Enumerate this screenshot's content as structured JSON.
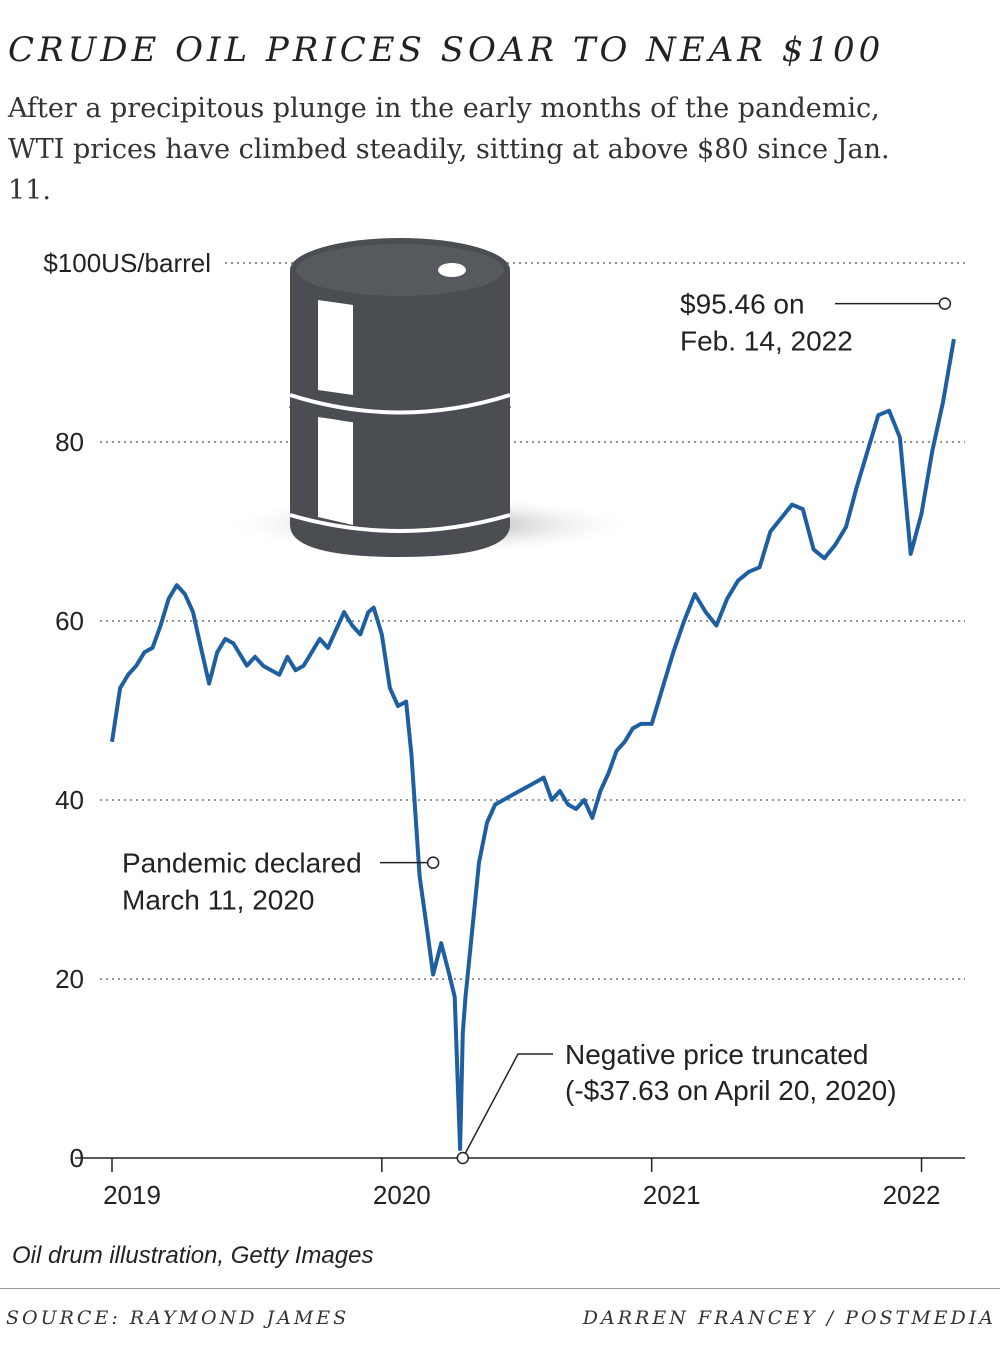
{
  "header": {
    "title": "CRUDE OIL PRICES SOAR TO NEAR $100",
    "subtitle": "After a precipitous plunge in the early months of the pandemic, WTI prices have climbed steadily, sitting at above $80 since Jan. 11."
  },
  "chart_data": {
    "type": "line",
    "x_tick_labels": [
      "2019",
      "2020",
      "2021",
      "2022"
    ],
    "x_ticks": [
      2019.0,
      2020.0,
      2021.0,
      2022.0
    ],
    "xlim": [
      2019.0,
      2022.15
    ],
    "y_tick_labels": [
      "$100US/barrel",
      "80",
      "60",
      "40",
      "20",
      "0"
    ],
    "y_ticks": [
      100,
      80,
      60,
      40,
      20,
      0
    ],
    "ylim": [
      0,
      100
    ],
    "grid": true,
    "line_color": "#1d5fa0",
    "series": [
      {
        "x": [
          2019.0,
          2019.03,
          2019.06,
          2019.09,
          2019.12,
          2019.15,
          2019.18,
          2019.21,
          2019.24,
          2019.27,
          2019.3,
          2019.33,
          2019.36,
          2019.39,
          2019.42,
          2019.45,
          2019.48,
          2019.5,
          2019.53,
          2019.56,
          2019.59,
          2019.62,
          2019.65,
          2019.68,
          2019.71,
          2019.74,
          2019.77,
          2019.8,
          2019.83,
          2019.86,
          2019.89,
          2019.92,
          2019.95,
          2019.97,
          2020.0,
          2020.03,
          2020.06,
          2020.09,
          2020.11,
          2020.14,
          2020.17,
          2020.19,
          2020.22,
          2020.25,
          2020.27,
          2020.29,
          2020.3,
          2020.31,
          2020.33,
          2020.36,
          2020.39,
          2020.42,
          2020.45,
          2020.48,
          2020.51,
          2020.54,
          2020.57,
          2020.6,
          2020.63,
          2020.66,
          2020.69,
          2020.72,
          2020.75,
          2020.78,
          2020.81,
          2020.84,
          2020.87,
          2020.9,
          2020.93,
          2020.96,
          2021.0,
          2021.04,
          2021.08,
          2021.12,
          2021.16,
          2021.2,
          2021.24,
          2021.28,
          2021.32,
          2021.36,
          2021.4,
          2021.44,
          2021.48,
          2021.52,
          2021.56,
          2021.6,
          2021.64,
          2021.68,
          2021.72,
          2021.76,
          2021.8,
          2021.84,
          2021.88,
          2021.92,
          2021.96,
          2022.0,
          2022.04,
          2022.08,
          2022.12
        ],
        "values": [
          46.5,
          52.5,
          54.0,
          55.0,
          56.5,
          57.0,
          59.5,
          62.5,
          64.0,
          63.0,
          61.0,
          57.0,
          53.0,
          56.5,
          58.0,
          57.5,
          56.0,
          55.0,
          56.0,
          55.0,
          54.5,
          54.0,
          56.0,
          54.5,
          55.0,
          56.5,
          58.0,
          57.0,
          59.0,
          61.0,
          59.5,
          58.5,
          61.0,
          61.5,
          58.5,
          52.5,
          50.5,
          51.0,
          45.0,
          31.5,
          25.0,
          20.5,
          24.0,
          20.5,
          18.0,
          1.0,
          14.0,
          18.0,
          24.0,
          33.0,
          37.5,
          39.5,
          40.0,
          40.5,
          41.0,
          41.5,
          42.0,
          42.5,
          40.0,
          41.0,
          39.5,
          39.0,
          40.0,
          38.0,
          41.0,
          43.0,
          45.5,
          46.5,
          48.0,
          48.5,
          48.5,
          52.5,
          56.5,
          60.0,
          63.0,
          61.0,
          59.5,
          62.5,
          64.5,
          65.5,
          66.0,
          70.0,
          71.5,
          73.0,
          72.5,
          68.0,
          67.0,
          68.5,
          70.5,
          75.0,
          79.0,
          83.0,
          83.5,
          80.5,
          67.5,
          72.0,
          79.0,
          84.5,
          91.5
        ]
      }
    ],
    "annotations": [
      {
        "text": "$95.46 on Feb. 14, 2022",
        "x": 2022.12,
        "y": 95.46
      },
      {
        "text": "Pandemic declared March 11, 2020",
        "x": 2020.19,
        "y": 33.0
      },
      {
        "text": "Negative price truncated (-$37.63 on April 20, 2020)",
        "x": 2020.3,
        "y": 0
      }
    ]
  },
  "credit": "Oil drum illustration, Getty Images",
  "footer": {
    "source": "SOURCE: RAYMOND JAMES",
    "byline": "DARREN FRANCEY / POSTMEDIA"
  }
}
